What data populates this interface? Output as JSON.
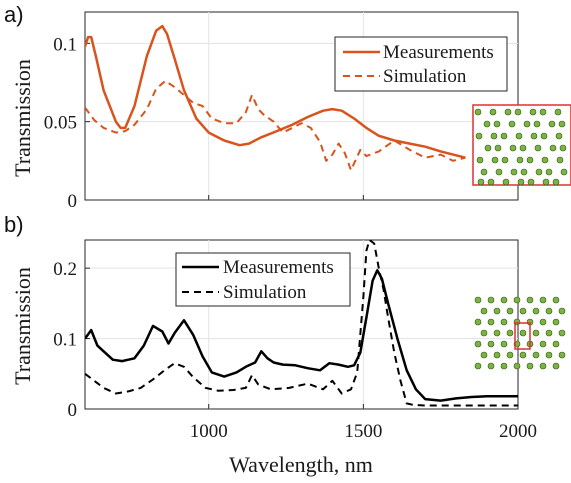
{
  "chart_data": [
    {
      "panel_label": "a)",
      "type": "line",
      "ylabel": "Transmission",
      "xlabel": "",
      "xlim": [
        600,
        2000
      ],
      "ylim": [
        0,
        0.12
      ],
      "yticks": [
        0,
        0.05,
        0.1
      ],
      "ytick_labels": [
        "0",
        "0.05",
        "0.1"
      ],
      "xticks": [
        1000,
        1500,
        2000
      ],
      "xtick_labels": [
        "",
        "",
        ""
      ],
      "grid": true,
      "legend_position": "top-right",
      "color": "#d9541d",
      "series": [
        {
          "name": "Measurements",
          "style": "solid",
          "x": [
            600,
            610,
            620,
            635,
            660,
            700,
            715,
            730,
            760,
            800,
            830,
            850,
            865,
            890,
            920,
            960,
            1000,
            1050,
            1100,
            1130,
            1170,
            1220,
            1270,
            1320,
            1370,
            1400,
            1430,
            1470,
            1510,
            1550,
            1600,
            1650,
            1700,
            1750,
            1790,
            1830
          ],
          "y": [
            0.098,
            0.104,
            0.104,
            0.092,
            0.07,
            0.05,
            0.046,
            0.046,
            0.06,
            0.092,
            0.108,
            0.111,
            0.106,
            0.09,
            0.07,
            0.052,
            0.043,
            0.038,
            0.035,
            0.036,
            0.04,
            0.044,
            0.048,
            0.053,
            0.057,
            0.058,
            0.057,
            0.052,
            0.046,
            0.041,
            0.038,
            0.036,
            0.034,
            0.031,
            0.029,
            0.027
          ]
        },
        {
          "name": "Simulation",
          "style": "dashed",
          "x": [
            600,
            630,
            660,
            700,
            730,
            760,
            800,
            830,
            860,
            890,
            920,
            950,
            980,
            1010,
            1050,
            1090,
            1120,
            1140,
            1160,
            1180,
            1210,
            1240,
            1270,
            1300,
            1330,
            1360,
            1380,
            1400,
            1420,
            1440,
            1460,
            1490,
            1510,
            1550,
            1600,
            1650,
            1700,
            1750,
            1790,
            1830
          ],
          "y": [
            0.059,
            0.051,
            0.046,
            0.043,
            0.044,
            0.048,
            0.058,
            0.071,
            0.076,
            0.072,
            0.067,
            0.062,
            0.06,
            0.052,
            0.049,
            0.049,
            0.056,
            0.067,
            0.058,
            0.054,
            0.05,
            0.043,
            0.046,
            0.049,
            0.046,
            0.037,
            0.025,
            0.029,
            0.036,
            0.03,
            0.019,
            0.032,
            0.028,
            0.031,
            0.038,
            0.032,
            0.027,
            0.029,
            0.025,
            0.027
          ]
        }
      ]
    },
    {
      "panel_label": "b)",
      "type": "line",
      "ylabel": "Transmission",
      "xlabel": "Wavelength, nm",
      "xlim": [
        600,
        2000
      ],
      "ylim": [
        0,
        0.24
      ],
      "yticks": [
        0,
        0.1,
        0.2
      ],
      "ytick_labels": [
        "0",
        "0.1",
        "0.2"
      ],
      "xticks": [
        1000,
        1500,
        2000
      ],
      "xtick_labels": [
        "1000",
        "1500",
        "2000"
      ],
      "grid": true,
      "legend_position": "top-left",
      "color": "#000000",
      "series": [
        {
          "name": "Measurements",
          "style": "solid",
          "x": [
            600,
            620,
            640,
            660,
            690,
            720,
            760,
            790,
            820,
            850,
            870,
            890,
            920,
            950,
            980,
            1010,
            1050,
            1090,
            1120,
            1150,
            1170,
            1190,
            1210,
            1240,
            1280,
            1320,
            1360,
            1390,
            1420,
            1450,
            1470,
            1490,
            1510,
            1530,
            1545,
            1560,
            1580,
            1610,
            1640,
            1670,
            1700,
            1750,
            1800,
            1850,
            1900,
            2000
          ],
          "y": [
            0.1,
            0.112,
            0.09,
            0.082,
            0.07,
            0.068,
            0.072,
            0.09,
            0.118,
            0.11,
            0.093,
            0.108,
            0.126,
            0.105,
            0.075,
            0.052,
            0.046,
            0.052,
            0.06,
            0.066,
            0.082,
            0.072,
            0.066,
            0.063,
            0.062,
            0.058,
            0.055,
            0.065,
            0.063,
            0.06,
            0.062,
            0.08,
            0.13,
            0.182,
            0.197,
            0.185,
            0.15,
            0.1,
            0.055,
            0.028,
            0.014,
            0.012,
            0.015,
            0.017,
            0.018,
            0.018
          ]
        },
        {
          "name": "Simulation",
          "style": "dashed",
          "x": [
            600,
            630,
            660,
            700,
            740,
            780,
            820,
            860,
            890,
            920,
            950,
            990,
            1030,
            1080,
            1120,
            1140,
            1160,
            1200,
            1260,
            1320,
            1370,
            1400,
            1430,
            1460,
            1480,
            1500,
            1510,
            1520,
            1535,
            1550,
            1565,
            1580,
            1600,
            1620,
            1640,
            1660,
            1700,
            1800,
            1900,
            2000
          ],
          "y": [
            0.05,
            0.04,
            0.03,
            0.022,
            0.025,
            0.03,
            0.042,
            0.056,
            0.065,
            0.06,
            0.045,
            0.03,
            0.026,
            0.027,
            0.03,
            0.048,
            0.035,
            0.028,
            0.03,
            0.036,
            0.028,
            0.04,
            0.022,
            0.028,
            0.052,
            0.16,
            0.225,
            0.24,
            0.235,
            0.2,
            0.17,
            0.13,
            0.08,
            0.04,
            0.008,
            0.006,
            0.005,
            0.005,
            0.005,
            0.005
          ]
        }
      ]
    }
  ]
}
